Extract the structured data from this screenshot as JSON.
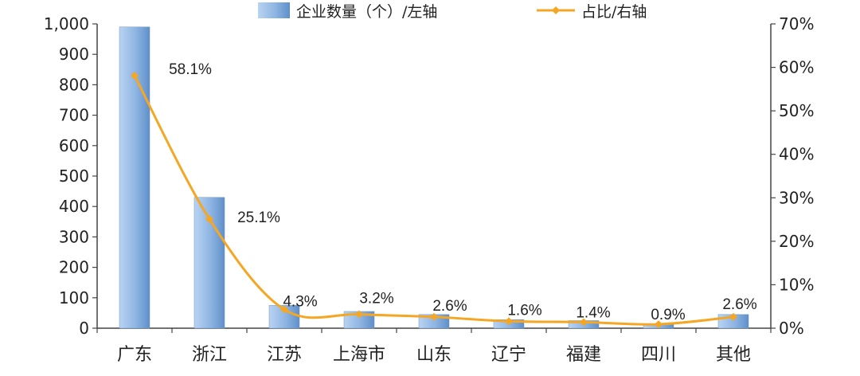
{
  "chart_data": {
    "type": "bar",
    "categories": [
      "广东",
      "浙江",
      "江苏",
      "上海市",
      "山东",
      "辽宁",
      "福建",
      "四川",
      "其他"
    ],
    "series": [
      {
        "name": "企业数量（个）/左轴",
        "type": "bar",
        "axis": "left",
        "values": [
          990,
          430,
          75,
          55,
          45,
          28,
          25,
          15,
          45
        ]
      },
      {
        "name": "占比/右轴",
        "type": "line",
        "axis": "right",
        "values": [
          58.1,
          25.1,
          4.3,
          3.2,
          2.6,
          1.6,
          1.4,
          0.9,
          2.6
        ],
        "labels": [
          "58.1%",
          "25.1%",
          "4.3%",
          "3.2%",
          "2.6%",
          "1.6%",
          "1.4%",
          "0.9%",
          "2.6%"
        ]
      }
    ],
    "y_left": {
      "range": [
        0,
        1000
      ],
      "ticks": [
        0,
        100,
        200,
        300,
        400,
        500,
        600,
        700,
        800,
        900,
        1000
      ],
      "tick_labels": [
        "0",
        "100",
        "200",
        "300",
        "400",
        "500",
        "600",
        "700",
        "800",
        "900",
        "1,000"
      ]
    },
    "y_right": {
      "range": [
        0,
        70
      ],
      "ticks": [
        0,
        10,
        20,
        30,
        40,
        50,
        60,
        70
      ],
      "tick_labels": [
        "0%",
        "10%",
        "20%",
        "30%",
        "40%",
        "50%",
        "60%",
        "70%"
      ]
    },
    "grid": false,
    "legend": "top-center",
    "colors": {
      "bar": "#8db4e2",
      "line": "#f5a623"
    }
  }
}
